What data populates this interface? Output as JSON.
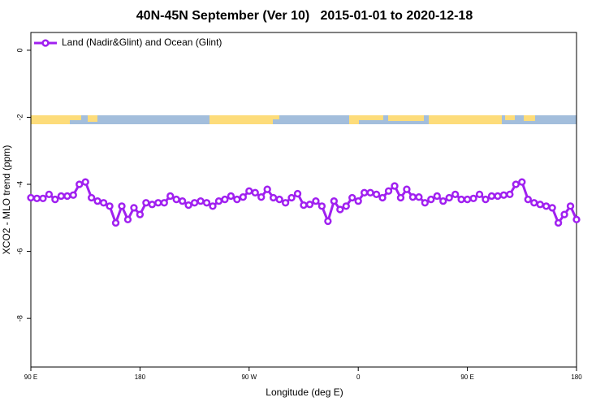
{
  "chart_data": {
    "type": "line",
    "title": "40N-45N September (Ver 10)   2015-01-01 to 2020-12-18",
    "x_label": "Longitude (deg E)",
    "y_label": "XCO2 - MLO trend (ppm)",
    "xlim": [
      90,
      540
    ],
    "xticks": [
      {
        "value": 90,
        "label": "90 E"
      },
      180,
      {
        "value": 270,
        "label": "90 W"
      },
      {
        "value": 360,
        "label": "0"
      },
      {
        "value": 450,
        "label": "90 E"
      },
      {
        "value": 540,
        "label": "180"
      }
    ],
    "ylim": [
      -9.45,
      0.53
    ],
    "yticks": [
      0,
      -2,
      -4,
      -6,
      -8
    ],
    "grid": false,
    "legend": "top-left",
    "x": [
      90,
      95,
      100,
      105,
      110,
      115,
      120,
      125,
      130,
      135,
      140,
      145,
      150,
      155,
      160,
      165,
      170,
      175,
      180,
      185,
      190,
      195,
      200,
      205,
      210,
      215,
      220,
      225,
      230,
      235,
      240,
      245,
      250,
      255,
      260,
      265,
      270,
      275,
      280,
      285,
      290,
      295,
      300,
      305,
      310,
      315,
      320,
      325,
      330,
      335,
      340,
      345,
      350,
      355,
      360,
      365,
      370,
      375,
      380,
      385,
      390,
      395,
      400,
      405,
      410,
      415,
      420,
      425,
      430,
      435,
      440,
      445,
      450,
      455,
      460,
      465,
      470,
      475,
      480,
      485,
      490,
      495,
      500,
      505,
      510,
      515,
      520,
      525,
      530,
      535,
      540
    ],
    "series": [
      {
        "name": "Land (Nadir&Glint) and Ocean (Glint)",
        "color": "#a020f0",
        "values": [
          -4.4,
          -4.42,
          -4.42,
          -4.3,
          -4.45,
          -4.35,
          -4.35,
          -4.32,
          -4.0,
          -3.93,
          -4.4,
          -4.5,
          -4.55,
          -4.65,
          -5.15,
          -4.65,
          -5.05,
          -4.7,
          -4.9,
          -4.55,
          -4.6,
          -4.55,
          -4.55,
          -4.35,
          -4.45,
          -4.5,
          -4.62,
          -4.55,
          -4.5,
          -4.55,
          -4.65,
          -4.5,
          -4.45,
          -4.35,
          -4.45,
          -4.38,
          -4.2,
          -4.25,
          -4.38,
          -4.15,
          -4.4,
          -4.45,
          -4.55,
          -4.4,
          -4.28,
          -4.62,
          -4.6,
          -4.5,
          -4.65,
          -5.1,
          -4.5,
          -4.75,
          -4.65,
          -4.4,
          -4.5,
          -4.25,
          -4.25,
          -4.3,
          -4.4,
          -4.2,
          -4.05,
          -4.4,
          -4.15,
          -4.38,
          -4.38,
          -4.55,
          -4.45,
          -4.35,
          -4.5,
          -4.4,
          -4.3,
          -4.45,
          -4.45,
          -4.42,
          -4.3,
          -4.45,
          -4.35,
          -4.35,
          -4.32,
          -4.3,
          -4.0,
          -3.93,
          -4.45,
          -4.55,
          -4.6,
          -4.65,
          -4.7,
          -5.15,
          -4.9,
          -4.65,
          -5.05
        ]
      }
    ]
  }
}
